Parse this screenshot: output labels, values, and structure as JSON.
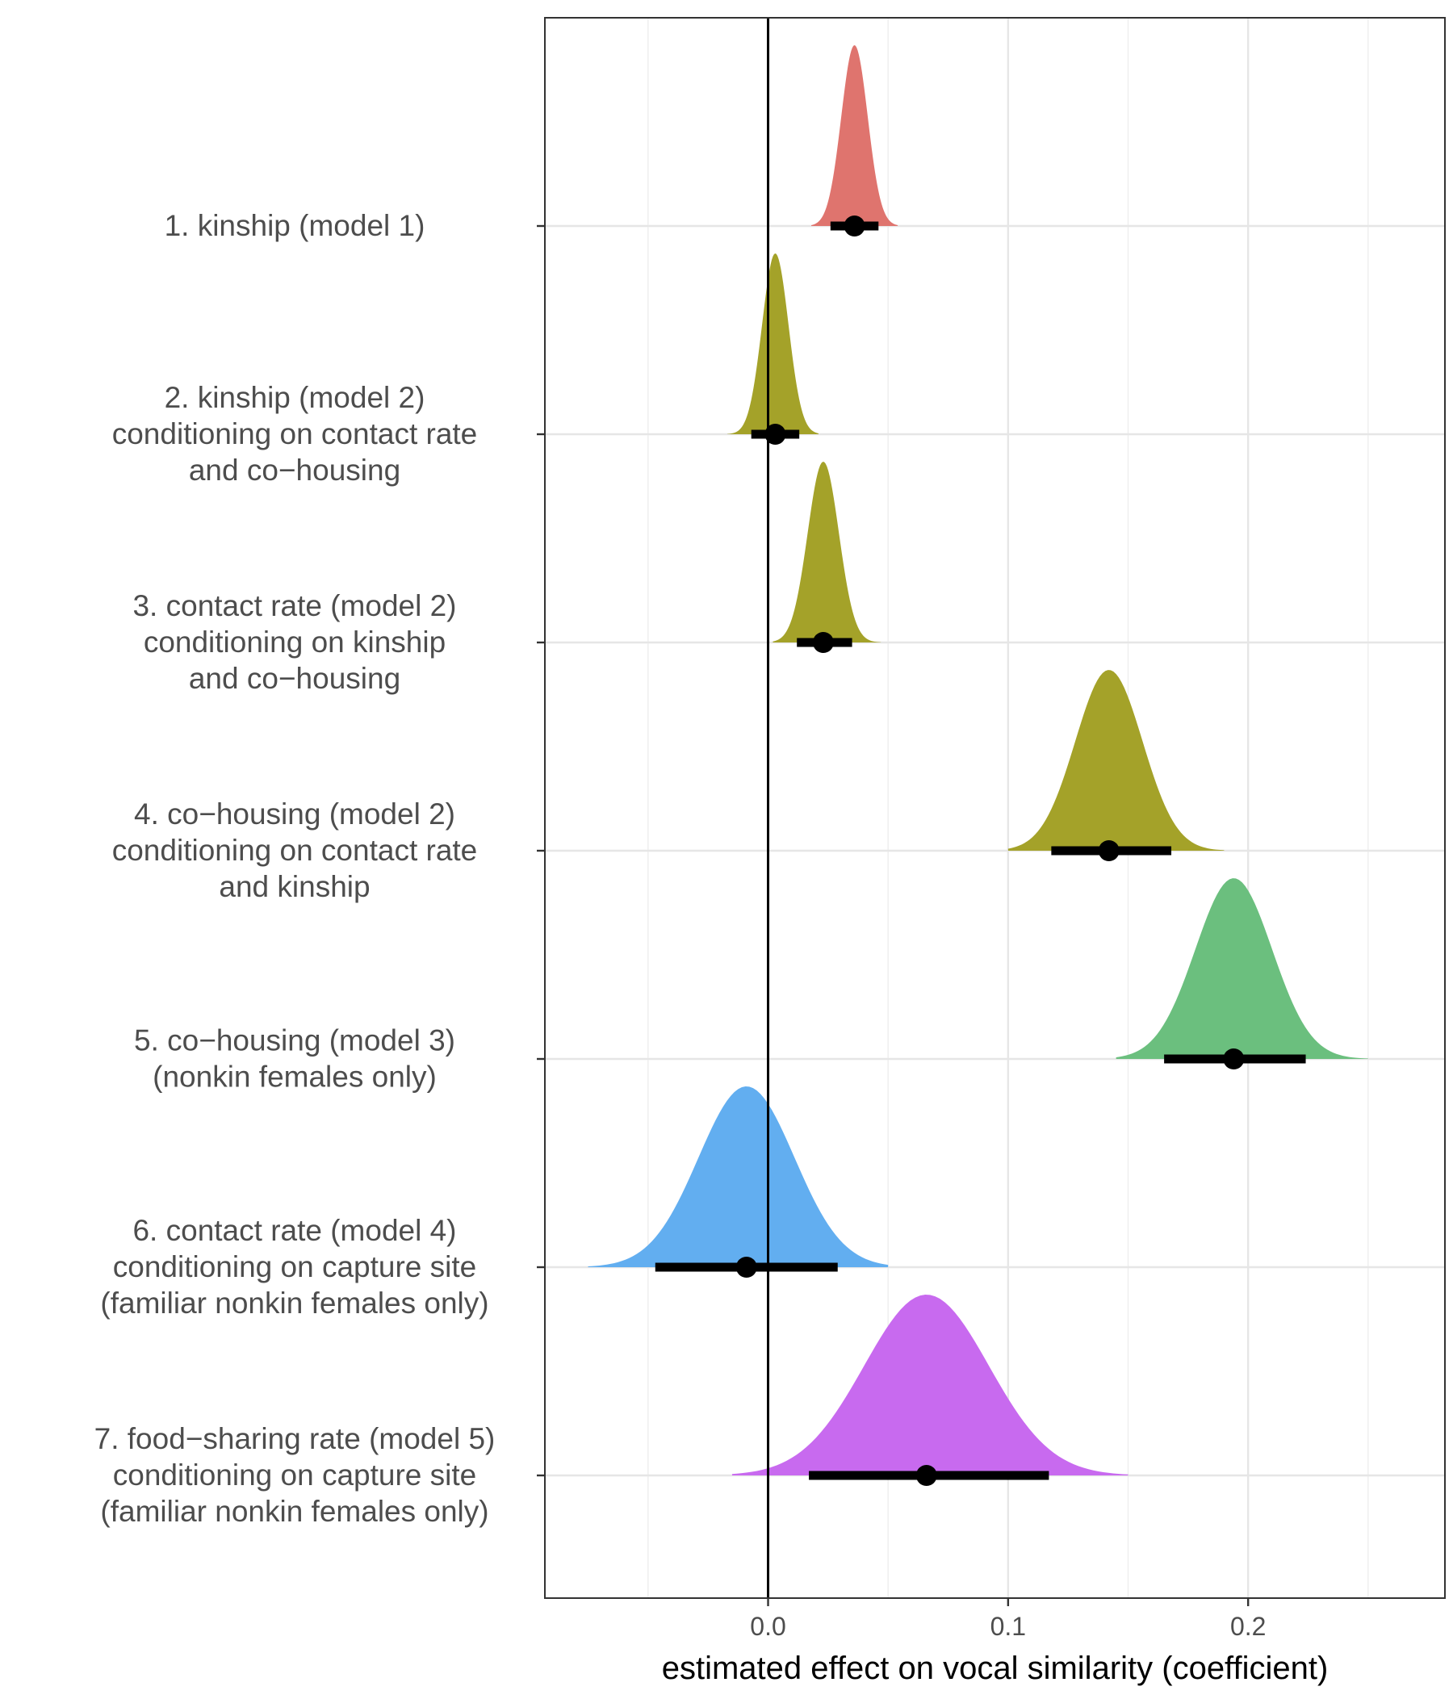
{
  "chart_data": {
    "type": "halfeye",
    "title": "",
    "xlabel": "estimated effect on vocal similarity (coefficient)",
    "ylabel": "",
    "xlim": [
      -0.093,
      0.282
    ],
    "x_ticks": [
      "0.0",
      "0.1",
      "0.2"
    ],
    "x_tick_values": [
      0.0,
      0.1,
      0.2
    ],
    "minor_grid": [
      -0.05,
      0.05,
      0.15,
      0.25
    ],
    "reference_line": 0,
    "grid": true,
    "legend": "none",
    "categories": [
      {
        "lines": [
          "1. kinship (model 1)"
        ],
        "estimate": 0.036,
        "ci": [
          0.026,
          0.046
        ],
        "sd": 0.0055,
        "dens_min": 0.018,
        "dens_max": 0.054,
        "color": "#df746e"
      },
      {
        "lines": [
          "2. kinship (model 2)",
          "conditioning on contact rate",
          "and co−housing"
        ],
        "estimate": 0.003,
        "ci": [
          -0.007,
          0.013
        ],
        "sd": 0.0055,
        "dens_min": -0.017,
        "dens_max": 0.021,
        "color": "#a4a229"
      },
      {
        "lines": [
          "3. contact rate (model 2)",
          "conditioning on kinship",
          "and co−housing"
        ],
        "estimate": 0.023,
        "ci": [
          0.012,
          0.035
        ],
        "sd": 0.0065,
        "dens_min": 0.002,
        "dens_max": 0.047,
        "color": "#a4a229"
      },
      {
        "lines": [
          "4. co−housing (model 2)",
          "conditioning on contact rate",
          "and kinship"
        ],
        "estimate": 0.142,
        "ci": [
          0.118,
          0.168
        ],
        "sd": 0.014,
        "dens_min": 0.1,
        "dens_max": 0.19,
        "color": "#a4a229"
      },
      {
        "lines": [
          "5. co−housing (model 3)",
          "(nonkin females only)"
        ],
        "estimate": 0.194,
        "ci": [
          0.165,
          0.224
        ],
        "sd": 0.016,
        "dens_min": 0.145,
        "dens_max": 0.25,
        "color": "#6bbf7e"
      },
      {
        "lines": [
          "6. contact rate (model 4)",
          "conditioning on capture site",
          "(familiar nonkin females only)"
        ],
        "estimate": -0.009,
        "ci": [
          -0.047,
          0.029
        ],
        "sd": 0.02,
        "dens_min": -0.075,
        "dens_max": 0.05,
        "color": "#62aef0"
      },
      {
        "lines": [
          "7. food−sharing rate (model 5)",
          "conditioning on capture site",
          "(familiar nonkin females only)"
        ],
        "estimate": 0.066,
        "ci": [
          0.017,
          0.117
        ],
        "sd": 0.026,
        "dens_min": -0.015,
        "dens_max": 0.15,
        "color": "#c86aef"
      }
    ]
  }
}
